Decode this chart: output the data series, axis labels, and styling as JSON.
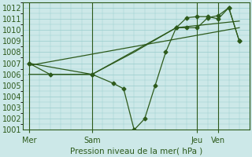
{
  "title": "Pression niveau de la mer( hPa )",
  "bg_color": "#cce8e8",
  "grid_color": "#99cccc",
  "line_color": "#2d5a1b",
  "ylim": [
    1001,
    1012.5
  ],
  "yticks": [
    1001,
    1002,
    1003,
    1004,
    1005,
    1006,
    1007,
    1008,
    1009,
    1010,
    1011,
    1012
  ],
  "xtick_labels": [
    "Mer",
    "Sam",
    "Jeu",
    "Ven"
  ],
  "xtick_positions": [
    0,
    3,
    8,
    9
  ],
  "xlim": [
    -0.3,
    10.5
  ],
  "vline_positions": [
    0,
    3,
    8,
    9
  ],
  "series1": {
    "x": [
      0,
      1,
      3,
      4,
      4.5,
      5,
      5.5,
      6,
      6.5,
      7,
      7.5,
      8,
      8.5,
      9,
      9.5,
      10
    ],
    "y": [
      1007.0,
      1006.0,
      1006.0,
      1005.2,
      1004.7,
      1001.0,
      1002.0,
      1005.0,
      1008.0,
      1010.2,
      1010.2,
      1010.2,
      1011.1,
      1011.3,
      1012.0,
      1009.0
    ],
    "marker": "D",
    "markersize": 2.5
  },
  "series2": {
    "x": [
      0,
      3,
      7,
      7.5,
      8,
      8.5,
      9,
      9.5,
      10
    ],
    "y": [
      1007.0,
      1006.0,
      1010.2,
      1011.1,
      1011.2,
      1011.2,
      1011.0,
      1012.0,
      1009.0
    ],
    "marker": "D",
    "markersize": 2.5
  },
  "series3": {
    "x": [
      0,
      10
    ],
    "y": [
      1006.8,
      1010.2
    ],
    "marker": null
  },
  "series4": {
    "x": [
      0,
      3,
      5,
      7,
      10
    ],
    "y": [
      1006.0,
      1006.0,
      1008.0,
      1010.2,
      1010.8
    ],
    "marker": null
  }
}
